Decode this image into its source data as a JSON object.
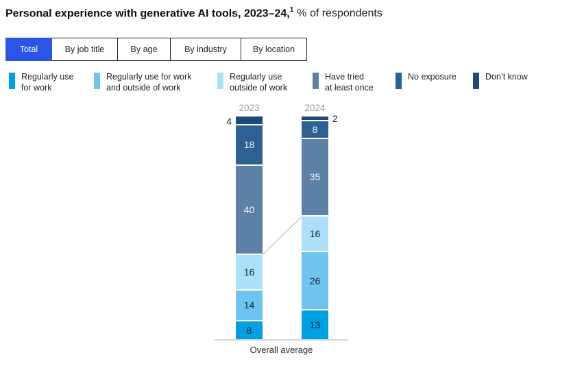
{
  "title": {
    "bold": "Personal experience with generative AI tools, 2023–24,",
    "superscript": "1",
    "regular": "% of respondents"
  },
  "tabs": {
    "items": [
      {
        "label": "Total",
        "active": true
      },
      {
        "label": "By job title",
        "active": false
      },
      {
        "label": "By age",
        "active": false
      },
      {
        "label": "By industry",
        "active": false
      },
      {
        "label": "By location",
        "active": false
      }
    ],
    "active_color": "#2B55E6"
  },
  "legend": {
    "items": [
      {
        "label": "Regularly use for work",
        "line1": "Regularly use",
        "line2": "for work",
        "color": "#00A0E2"
      },
      {
        "label": "Regularly use for work and outside of work",
        "line1": "Regularly use for work",
        "line2": "and outside of work",
        "color": "#6EC4EF"
      },
      {
        "label": "Regularly use outside of work",
        "line1": "Regularly use",
        "line2": "outside of work",
        "color": "#ACE0F9"
      },
      {
        "label": "Have tried at least once",
        "line1": "Have tried",
        "line2": "at least once",
        "color": "#5D80A7"
      },
      {
        "label": "No exposure",
        "line1": "No exposure",
        "line2": "",
        "color": "#2D6191"
      },
      {
        "label": "Don’t know",
        "line1": "Don’t know",
        "line2": "",
        "color": "#1B4A7A"
      }
    ]
  },
  "chart_data": {
    "type": "bar",
    "stacked": true,
    "categories": [
      "2023",
      "2024"
    ],
    "series": [
      {
        "name": "Regularly use for work",
        "color": "#00A0E2",
        "label_color": "#142B45",
        "values": [
          8,
          13
        ]
      },
      {
        "name": "Regularly use for work and outside of work",
        "color": "#6EC4EF",
        "label_color": "#142B45",
        "values": [
          14,
          26
        ]
      },
      {
        "name": "Regularly use outside of work",
        "color": "#ACE0F9",
        "label_color": "#142B45",
        "values": [
          16,
          16
        ]
      },
      {
        "name": "Have tried at least once",
        "color": "#5D80A7",
        "label_color": "#EDF2F7",
        "values": [
          40,
          35
        ]
      },
      {
        "name": "No exposure",
        "color": "#2D6191",
        "label_color": "#EDF2F7",
        "values": [
          18,
          8
        ]
      },
      {
        "name": "Don’t know",
        "color": "#1B4A7A",
        "label_color": "#16202C",
        "values": [
          4,
          2
        ],
        "label_position": [
          "outside-left",
          "outside-right"
        ]
      }
    ],
    "xlabel": "Overall average",
    "unit": "% of respondents",
    "ylim": [
      0,
      100
    ],
    "grid": false,
    "legend_position": "top",
    "connector_boundary_after_series": 2,
    "connector_color": "#B0B0B0",
    "year_label_color": "#9A9CA1"
  }
}
